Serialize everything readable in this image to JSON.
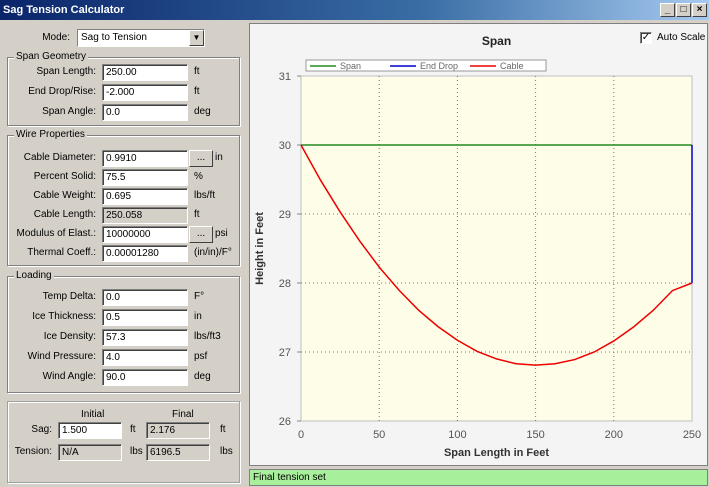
{
  "window": {
    "title": "Sag Tension Calculator",
    "min_label": "_",
    "max_label": "□",
    "close_label": "×"
  },
  "mode": {
    "label": "Mode:",
    "value": "Sag to Tension"
  },
  "span_geometry": {
    "title": "Span Geometry",
    "fields": [
      {
        "label": "Span Length:",
        "value": "250.00",
        "unit": "ft"
      },
      {
        "label": "End Drop/Rise:",
        "value": "-2.000",
        "unit": "ft"
      },
      {
        "label": "Span Angle:",
        "value": "0.0",
        "unit": "deg"
      }
    ]
  },
  "wire_properties": {
    "title": "Wire Properties",
    "cable_diameter": {
      "label": "Cable Diameter:",
      "value": "0.9910",
      "unit": "in",
      "button": "..."
    },
    "percent_solid": {
      "label": "Percent Solid:",
      "value": "75.5",
      "unit": "%"
    },
    "cable_weight": {
      "label": "Cable Weight:",
      "value": "0.695",
      "unit": "lbs/ft"
    },
    "cable_length": {
      "label": "Cable Length:",
      "value": "250.058",
      "unit": "ft"
    },
    "modulus": {
      "label": "Modulus of Elast.:",
      "value": "10000000",
      "unit": "psi",
      "button": "..."
    },
    "thermal": {
      "label": "Thermal Coeff.:",
      "value": "0.00001280",
      "unit": "(in/in)/F°"
    }
  },
  "loading": {
    "title": "Loading",
    "fields": [
      {
        "label": "Temp Delta:",
        "value": "0.0",
        "unit": "F°"
      },
      {
        "label": "Ice Thickness:",
        "value": "0.5",
        "unit": "in"
      },
      {
        "label": "Ice Density:",
        "value": "57.3",
        "unit": "lbs/ft3"
      },
      {
        "label": "Wind Pressure:",
        "value": "4.0",
        "unit": "psf"
      },
      {
        "label": "Wind Angle:",
        "value": "90.0",
        "unit": "deg"
      }
    ]
  },
  "results": {
    "initial_header": "Initial",
    "final_header": "Final",
    "sag": {
      "label": "Sag:",
      "initial": "1.500",
      "initial_unit": "ft",
      "final": "2.176",
      "final_unit": "ft"
    },
    "tension": {
      "label": "Tension:",
      "initial": "N/A",
      "initial_unit": "lbs",
      "final": "6196.5",
      "final_unit": "lbs"
    }
  },
  "auto_scale": {
    "label": "Auto Scale",
    "checked": true,
    "mark": "✓"
  },
  "status_text": "Final tension set",
  "chart_data": {
    "type": "line",
    "title": "Span",
    "xlabel": "Span Length in Feet",
    "ylabel": "Height in Feet",
    "xlim": [
      0,
      250
    ],
    "ylim": [
      26,
      31
    ],
    "xticks": [
      0,
      50,
      100,
      150,
      200,
      250
    ],
    "yticks": [
      26,
      27,
      28,
      29,
      30,
      31
    ],
    "grid": true,
    "legend_position": "top",
    "series": [
      {
        "name": "Span",
        "color": "#228b22",
        "x": [
          0,
          250
        ],
        "y": [
          30,
          30
        ]
      },
      {
        "name": "End Drop",
        "color": "#0000cc",
        "x": [
          250,
          250
        ],
        "y": [
          30,
          28
        ]
      },
      {
        "name": "Cable",
        "color": "#ee0000",
        "x": [
          0,
          12.5,
          25,
          37.5,
          50,
          62.5,
          75,
          87.5,
          100,
          112.5,
          125,
          137.5,
          150,
          162.5,
          175,
          187.5,
          200,
          212.5,
          225,
          237.5,
          250
        ],
        "y": [
          30.0,
          29.49,
          29.03,
          28.61,
          28.23,
          27.9,
          27.61,
          27.37,
          27.17,
          27.01,
          26.9,
          26.83,
          26.81,
          26.83,
          26.89,
          27.0,
          27.16,
          27.36,
          27.6,
          27.89,
          28.0
        ]
      }
    ]
  }
}
